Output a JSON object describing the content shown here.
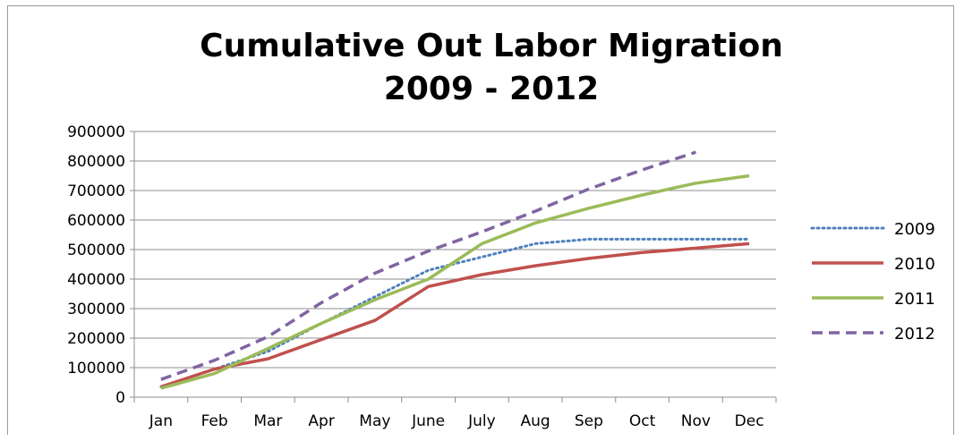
{
  "chart_data": {
    "type": "line",
    "title": "Cumulative Out Labor Migration",
    "subtitle": "2009 - 2012",
    "xlabel": "",
    "ylabel": "",
    "categories": [
      "Jan",
      "Feb",
      "Mar",
      "Apr",
      "May",
      "June",
      "July",
      "Aug",
      "Sep",
      "Oct",
      "Nov",
      "Dec"
    ],
    "ylim": [
      0,
      900000
    ],
    "yticks": [
      "0",
      "100000",
      "200000",
      "300000",
      "400000",
      "500000",
      "600000",
      "700000",
      "800000",
      "900000"
    ],
    "grid": true,
    "legend": "right",
    "series": [
      {
        "name": "2009",
        "color": "#4f81bd",
        "style": "dotted",
        "values": [
          35000,
          95000,
          155000,
          250000,
          340000,
          430000,
          475000,
          520000,
          535000,
          535000,
          535000,
          535000
        ]
      },
      {
        "name": "2010",
        "color": "#c0504d",
        "style": "solid",
        "values": [
          35000,
          95000,
          130000,
          195000,
          260000,
          375000,
          415000,
          445000,
          470000,
          490000,
          505000,
          520000
        ]
      },
      {
        "name": "2011",
        "color": "#9bbb59",
        "style": "solid",
        "values": [
          30000,
          80000,
          165000,
          250000,
          330000,
          400000,
          520000,
          590000,
          640000,
          685000,
          725000,
          750000
        ]
      },
      {
        "name": "2012",
        "color": "#8064a2",
        "style": "dashed",
        "values": [
          60000,
          125000,
          205000,
          320000,
          420000,
          495000,
          560000,
          630000,
          705000,
          770000,
          830000,
          null
        ]
      }
    ]
  }
}
